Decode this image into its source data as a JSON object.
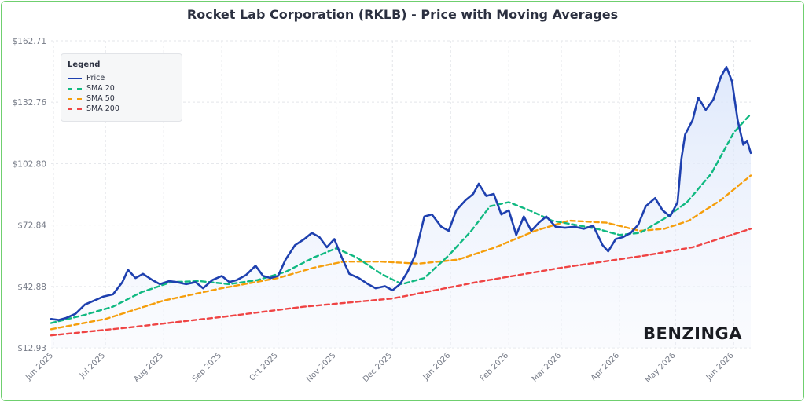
{
  "chart_data": {
    "type": "line",
    "title": "Rocket Lab Corporation (RKLB) - Price with Moving Averages",
    "y_ticks": [
      "$12.93",
      "$42.88",
      "$72.84",
      "$102.80",
      "$132.76",
      "$162.71"
    ],
    "ylim": [
      12.93,
      162.71
    ],
    "x_ticks": [
      "Jun 2025",
      "Jul 2025",
      "Aug 2025",
      "Sep 2025",
      "Oct 2025",
      "Nov 2025",
      "Dec 2025",
      "Jan 2026",
      "Feb 2026",
      "Mar 2026",
      "Apr 2026",
      "May 2026",
      "Jun 2026"
    ],
    "xlim": [
      "2025-06-02",
      "2026-06-10"
    ],
    "grid": true,
    "legend": {
      "title": "Legend",
      "position": "top-left",
      "entries": [
        {
          "label": "Price",
          "color": "#1e40af",
          "style": "solid"
        },
        {
          "label": "SMA 20",
          "color": "#10b981",
          "style": "dashed"
        },
        {
          "label": "SMA 50",
          "color": "#f59e0b",
          "style": "dashed"
        },
        {
          "label": "SMA 200",
          "color": "#ef4444",
          "style": "dashed"
        }
      ]
    },
    "series": [
      {
        "name": "Price",
        "color": "#1e40af",
        "points": [
          [
            "2025-06-02",
            27.0
          ],
          [
            "2025-06-06",
            26.5
          ],
          [
            "2025-06-10",
            27.5
          ],
          [
            "2025-06-15",
            29.5
          ],
          [
            "2025-06-20",
            34.0
          ],
          [
            "2025-06-25",
            36.0
          ],
          [
            "2025-06-30",
            38.0
          ],
          [
            "2025-07-05",
            39.0
          ],
          [
            "2025-07-10",
            45.0
          ],
          [
            "2025-07-13",
            51.0
          ],
          [
            "2025-07-17",
            47.0
          ],
          [
            "2025-07-21",
            49.0
          ],
          [
            "2025-07-26",
            46.0
          ],
          [
            "2025-07-30",
            44.0
          ],
          [
            "2025-08-04",
            45.5
          ],
          [
            "2025-08-08",
            45.0
          ],
          [
            "2025-08-13",
            44.0
          ],
          [
            "2025-08-18",
            45.0
          ],
          [
            "2025-08-22",
            42.0
          ],
          [
            "2025-08-27",
            46.0
          ],
          [
            "2025-09-01",
            48.0
          ],
          [
            "2025-09-05",
            45.0
          ],
          [
            "2025-09-09",
            46.0
          ],
          [
            "2025-09-14",
            48.5
          ],
          [
            "2025-09-19",
            53.0
          ],
          [
            "2025-09-23",
            48.0
          ],
          [
            "2025-09-27",
            47.0
          ],
          [
            "2025-10-01",
            48.0
          ],
          [
            "2025-10-05",
            56.0
          ],
          [
            "2025-10-10",
            63.0
          ],
          [
            "2025-10-15",
            66.0
          ],
          [
            "2025-10-19",
            69.0
          ],
          [
            "2025-10-23",
            67.0
          ],
          [
            "2025-10-27",
            62.0
          ],
          [
            "2025-10-31",
            66.0
          ],
          [
            "2025-11-04",
            57.0
          ],
          [
            "2025-11-08",
            49.0
          ],
          [
            "2025-11-13",
            47.0
          ],
          [
            "2025-11-18",
            44.0
          ],
          [
            "2025-11-22",
            42.0
          ],
          [
            "2025-11-27",
            43.0
          ],
          [
            "2025-12-01",
            41.0
          ],
          [
            "2025-12-05",
            44.0
          ],
          [
            "2025-12-09",
            50.0
          ],
          [
            "2025-12-13",
            58.0
          ],
          [
            "2025-12-18",
            77.0
          ],
          [
            "2025-12-22",
            78.0
          ],
          [
            "2025-12-27",
            72.0
          ],
          [
            "2025-12-31",
            70.0
          ],
          [
            "2026-01-04",
            80.0
          ],
          [
            "2026-01-09",
            85.0
          ],
          [
            "2026-01-13",
            88.0
          ],
          [
            "2026-01-16",
            93.0
          ],
          [
            "2026-01-20",
            87.0
          ],
          [
            "2026-01-24",
            88.0
          ],
          [
            "2026-01-28",
            78.0
          ],
          [
            "2026-02-01",
            80.0
          ],
          [
            "2026-02-05",
            68.0
          ],
          [
            "2026-02-09",
            77.0
          ],
          [
            "2026-02-13",
            70.0
          ],
          [
            "2026-02-17",
            74.0
          ],
          [
            "2026-02-21",
            77.0
          ],
          [
            "2026-02-26",
            72.0
          ],
          [
            "2026-03-03",
            71.5
          ],
          [
            "2026-03-08",
            72.0
          ],
          [
            "2026-03-13",
            71.0
          ],
          [
            "2026-03-18",
            72.5
          ],
          [
            "2026-03-23",
            63.0
          ],
          [
            "2026-03-26",
            60.0
          ],
          [
            "2026-03-30",
            66.0
          ],
          [
            "2026-04-03",
            67.0
          ],
          [
            "2026-04-07",
            69.0
          ],
          [
            "2026-04-11",
            73.0
          ],
          [
            "2026-04-15",
            82.0
          ],
          [
            "2026-04-20",
            86.0
          ],
          [
            "2026-04-24",
            80.0
          ],
          [
            "2026-04-28",
            77.0
          ],
          [
            "2026-05-02",
            84.0
          ],
          [
            "2026-05-04",
            105.0
          ],
          [
            "2026-05-06",
            117.0
          ],
          [
            "2026-05-10",
            124.0
          ],
          [
            "2026-05-13",
            135.0
          ],
          [
            "2026-05-17",
            129.0
          ],
          [
            "2026-05-21",
            134.0
          ],
          [
            "2026-05-25",
            145.0
          ],
          [
            "2026-05-28",
            150.0
          ],
          [
            "2026-05-31",
            143.0
          ],
          [
            "2026-06-03",
            124.0
          ],
          [
            "2026-06-06",
            112.0
          ],
          [
            "2026-06-08",
            114.0
          ],
          [
            "2026-06-10",
            108.0
          ]
        ]
      },
      {
        "name": "SMA 20",
        "color": "#10b981",
        "points": [
          [
            "2025-06-02",
            25.0
          ],
          [
            "2025-06-20",
            29.0
          ],
          [
            "2025-07-05",
            33.0
          ],
          [
            "2025-07-20",
            40.0
          ],
          [
            "2025-08-05",
            45.0
          ],
          [
            "2025-08-20",
            45.5
          ],
          [
            "2025-09-05",
            44.0
          ],
          [
            "2025-09-20",
            46.0
          ],
          [
            "2025-10-05",
            50.0
          ],
          [
            "2025-10-20",
            57.0
          ],
          [
            "2025-11-01",
            61.5
          ],
          [
            "2025-11-12",
            57.0
          ],
          [
            "2025-11-25",
            49.0
          ],
          [
            "2025-12-06",
            44.0
          ],
          [
            "2025-12-18",
            47.0
          ],
          [
            "2025-12-31",
            58.0
          ],
          [
            "2026-01-12",
            70.0
          ],
          [
            "2026-01-22",
            82.0
          ],
          [
            "2026-02-01",
            84.0
          ],
          [
            "2026-02-12",
            80.0
          ],
          [
            "2026-02-24",
            75.0
          ],
          [
            "2026-03-08",
            73.0
          ],
          [
            "2026-03-20",
            71.0
          ],
          [
            "2026-04-01",
            68.0
          ],
          [
            "2026-04-12",
            69.0
          ],
          [
            "2026-04-25",
            76.0
          ],
          [
            "2026-05-07",
            84.0
          ],
          [
            "2026-05-20",
            98.0
          ],
          [
            "2026-06-01",
            118.0
          ],
          [
            "2026-06-10",
            127.0
          ]
        ]
      },
      {
        "name": "SMA 50",
        "color": "#f59e0b",
        "points": [
          [
            "2025-06-02",
            22.0
          ],
          [
            "2025-07-01",
            27.0
          ],
          [
            "2025-08-01",
            36.0
          ],
          [
            "2025-09-01",
            42.0
          ],
          [
            "2025-10-01",
            47.0
          ],
          [
            "2025-10-20",
            52.0
          ],
          [
            "2025-11-05",
            55.0
          ],
          [
            "2025-11-25",
            55.0
          ],
          [
            "2025-12-15",
            54.0
          ],
          [
            "2026-01-05",
            56.0
          ],
          [
            "2026-01-25",
            62.0
          ],
          [
            "2026-02-15",
            70.0
          ],
          [
            "2026-03-05",
            75.0
          ],
          [
            "2026-03-25",
            74.0
          ],
          [
            "2026-04-12",
            70.0
          ],
          [
            "2026-04-25",
            71.0
          ],
          [
            "2026-05-08",
            75.0
          ],
          [
            "2026-05-25",
            85.0
          ],
          [
            "2026-06-10",
            97.0
          ]
        ]
      },
      {
        "name": "SMA 200",
        "color": "#ef4444",
        "points": [
          [
            "2025-06-02",
            19.0
          ],
          [
            "2025-07-15",
            23.0
          ],
          [
            "2025-09-01",
            28.0
          ],
          [
            "2025-10-15",
            33.0
          ],
          [
            "2025-12-01",
            37.0
          ],
          [
            "2026-01-15",
            45.0
          ],
          [
            "2026-03-01",
            52.0
          ],
          [
            "2026-04-15",
            58.0
          ],
          [
            "2026-05-10",
            62.0
          ],
          [
            "2026-06-10",
            71.0
          ]
        ]
      }
    ]
  },
  "watermark": "BENZINGA"
}
